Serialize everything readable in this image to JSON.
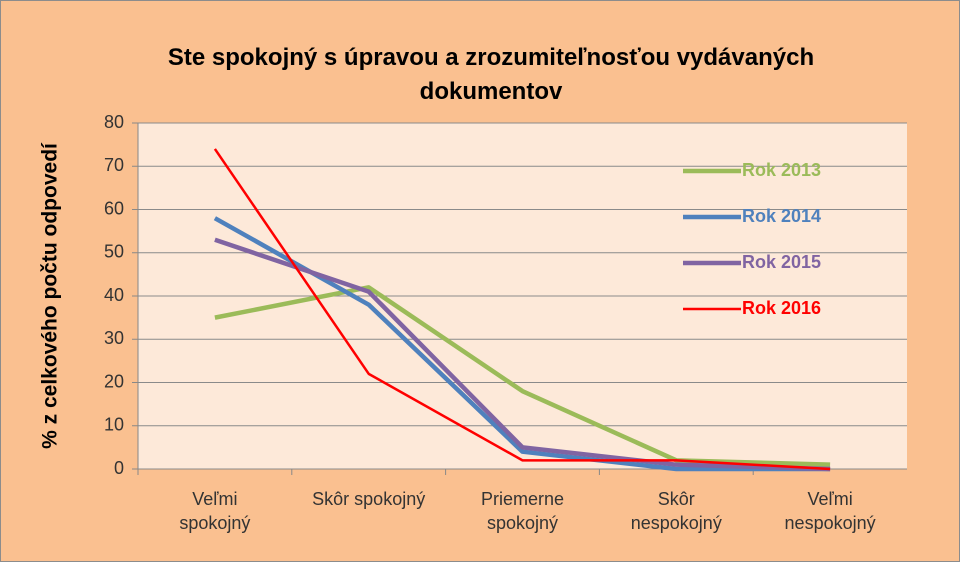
{
  "chart_data": {
    "type": "line",
    "title": "Ste spokojný s úpravou a zrozumiteľnosťou vydávaných dokumentov",
    "y_label": "% z celkového počtu odpovedí",
    "categories": [
      "Veľmi spokojný",
      "Skôr spokojný",
      "Priemerne spokojný",
      "Skôr nespokojný",
      "Veľmi nespokojný"
    ],
    "series": [
      {
        "name": "Rok 2013",
        "color": "#9bbb59",
        "values": [
          35,
          42,
          18,
          2,
          1
        ]
      },
      {
        "name": "Rok 2014",
        "color": "#4f81bd",
        "values": [
          58,
          38,
          4,
          0,
          0
        ]
      },
      {
        "name": "Rok 2015",
        "color": "#8064a2",
        "values": [
          53,
          41,
          5,
          1,
          0
        ]
      },
      {
        "name": "Rok 2016",
        "color": "#ff0000",
        "values": [
          74,
          22,
          2,
          2,
          0
        ]
      }
    ],
    "ylim": [
      0,
      80
    ],
    "yticks": [
      0,
      10,
      20,
      30,
      40,
      50,
      60,
      70,
      80
    ],
    "grid": true,
    "legend": "right"
  }
}
